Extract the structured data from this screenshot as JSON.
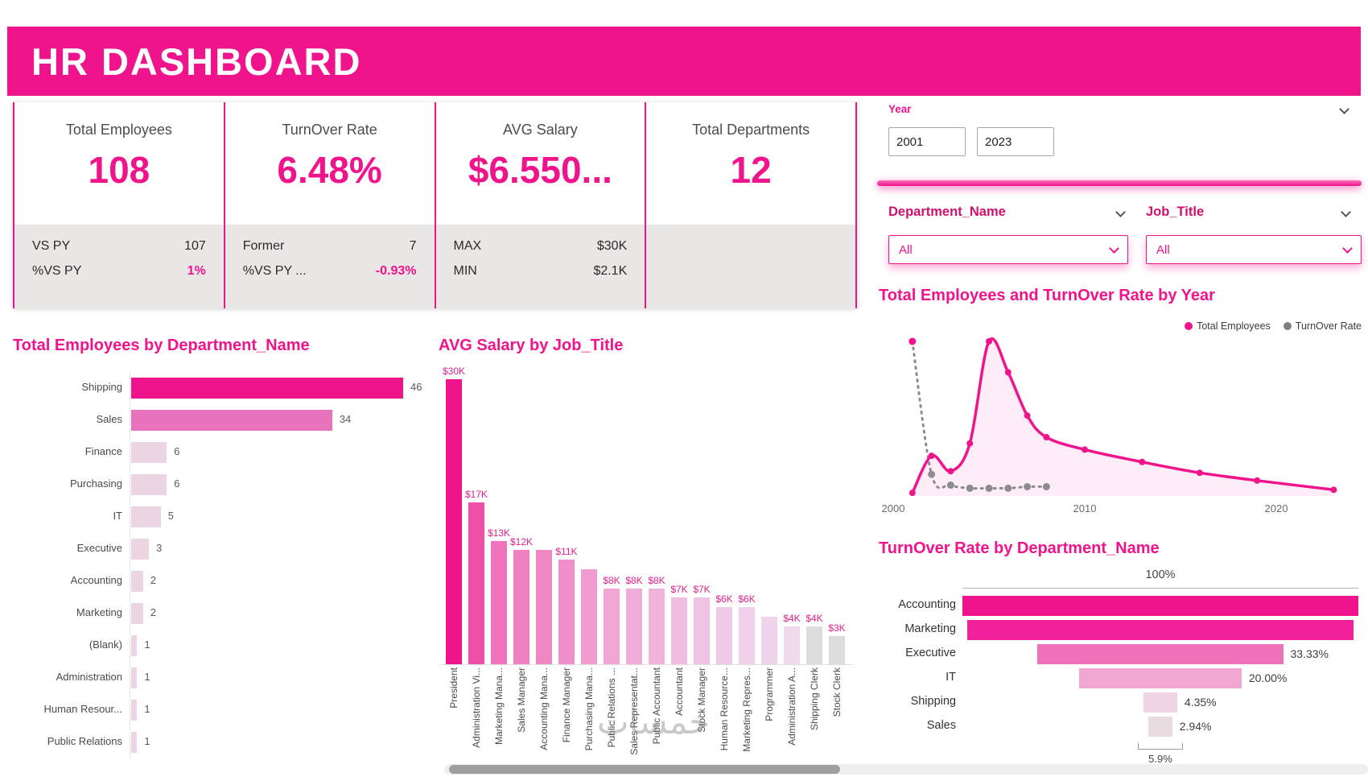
{
  "header": {
    "title": "HR DASHBOARD"
  },
  "kpis": [
    {
      "title": "Total Employees",
      "value": "108",
      "rows": [
        {
          "label": "VS PY",
          "value": "107"
        },
        {
          "label": "%VS PY",
          "value": "1%",
          "highlight": true
        }
      ]
    },
    {
      "title": "TurnOver Rate",
      "value": "6.48%",
      "rows": [
        {
          "label": "Former",
          "value": "7"
        },
        {
          "label": "%VS PY ...",
          "value": "-0.93%",
          "highlight": true
        }
      ]
    },
    {
      "title": "AVG Salary",
      "value": "$6.550...",
      "rows": [
        {
          "label": "MAX",
          "value": "$30K"
        },
        {
          "label": "MIN",
          "value": "$2.1K"
        }
      ]
    },
    {
      "title": "Total Departments",
      "value": "12",
      "rows": []
    }
  ],
  "slicers": {
    "year": {
      "label": "Year",
      "from": "2001",
      "to": "2023"
    },
    "department": {
      "label": "Department_Name",
      "value": "All"
    },
    "job_title": {
      "label": "Job_Title",
      "value": "All"
    }
  },
  "colors": {
    "primary": "#F0148C",
    "medium_pink": "#E972BC",
    "pale_pink": "#EBD5E3",
    "gray_series": "#8C8C8C",
    "card_footer": "#E9E6E6"
  },
  "watermark": "خمسات",
  "chart_data": {
    "employees_by_department": {
      "type": "bar",
      "orientation": "horizontal",
      "title": "Total Employees by Department_Name",
      "categories": [
        "Shipping",
        "Sales",
        "Finance",
        "Purchasing",
        "IT",
        "Executive",
        "Accounting",
        "Marketing",
        "(Blank)",
        "Administration",
        "Human Resour...",
        "Public Relations"
      ],
      "values": [
        46,
        34,
        6,
        6,
        5,
        3,
        2,
        2,
        1,
        1,
        1,
        1
      ],
      "colors": [
        "#F0148C",
        "#E972BC",
        "#EBD5E3",
        "#EBD5E3",
        "#EBD5E3",
        "#EBD5E3",
        "#EBD5E3",
        "#EBD5E3",
        "#EBD5E3",
        "#EBD5E3",
        "#EBD5E3",
        "#EBD5E3"
      ],
      "xlim": [
        0,
        50
      ]
    },
    "salary_by_job": {
      "type": "bar",
      "orientation": "vertical",
      "title": "AVG Salary by Job_Title",
      "categories": [
        "President",
        "Administration Vi...",
        "Marketing Mana...",
        "Sales Manager",
        "Accounting Mana...",
        "Finance Manager",
        "Purchasing Mana...",
        "Public Relations ...",
        "Sales Representat...",
        "Public Accountant",
        "Accountant",
        "Stock Manager",
        "Human Resource...",
        "Marketing Repres...",
        "Programmer",
        "Administration A...",
        "Shipping Clerk",
        "Stock Clerk"
      ],
      "values_k": [
        30,
        17,
        13,
        12,
        12,
        11,
        10,
        8,
        8,
        8,
        7,
        7,
        6,
        6,
        5,
        4,
        4,
        3
      ],
      "labels": [
        "$30K",
        "$17K",
        "$13K",
        "$12K",
        "",
        "$11K",
        "",
        "$8K",
        "$8K",
        "$8K",
        "$7K",
        "$7K",
        "$6K",
        "$6K",
        "",
        "$4K",
        "$4K",
        "$3K"
      ],
      "colors": [
        "#F0148C",
        "#EE4FA7",
        "#EF72BA",
        "#EF81C2",
        "#EF87C5",
        "#EF90CA",
        "#F09CD0",
        "#F0A7D6",
        "#F0ADD9",
        "#F0B3DC",
        "#F0BCE0",
        "#F0C2E3",
        "#F0C9E6",
        "#F0CFE9",
        "#F0D4EB",
        "#EFD8EC",
        "#DCDCDC",
        "#DCDCDC"
      ],
      "ylim": [
        0,
        32
      ]
    },
    "employees_turnover_by_year": {
      "type": "line",
      "title": "Total Employees and TurnOver Rate by Year",
      "x_ticks": [
        "2000",
        "2010",
        "2020"
      ],
      "x_range": [
        2000,
        2024
      ],
      "y_range": [
        0,
        105
      ],
      "series": [
        {
          "name": "Total Employees",
          "color": "#F0148C",
          "style": "solid",
          "points": [
            [
              2001,
              2
            ],
            [
              2002,
              26
            ],
            [
              2003,
              16
            ],
            [
              2004,
              34
            ],
            [
              2005,
              100
            ],
            [
              2006,
              80
            ],
            [
              2007,
              52
            ],
            [
              2008,
              38
            ],
            [
              2010,
              30
            ],
            [
              2013,
              22
            ],
            [
              2016,
              15
            ],
            [
              2019,
              10
            ],
            [
              2023,
              4
            ]
          ]
        },
        {
          "name": "TurnOver Rate",
          "color": "#8C8C8C",
          "style": "dotted",
          "first_marker_color": "#F0148C",
          "points": [
            [
              2001,
              100
            ],
            [
              2002,
              14
            ],
            [
              2003,
              7
            ],
            [
              2004,
              5
            ],
            [
              2005,
              5
            ],
            [
              2006,
              5
            ],
            [
              2007,
              6
            ],
            [
              2008,
              6
            ]
          ]
        }
      ],
      "legend_position": "top-right"
    },
    "turnover_by_department": {
      "type": "funnel",
      "title": "TurnOver Rate by Department_Name",
      "categories": [
        "Accounting",
        "Marketing",
        "Executive",
        "IT",
        "Shipping",
        "Sales"
      ],
      "values_pct": [
        100,
        100,
        33.33,
        20.0,
        4.35,
        2.94
      ],
      "rate_labels": [
        "",
        "",
        "33.33%",
        "20.00%",
        "4.35%",
        "2.94%"
      ],
      "display_widths_pct": [
        100,
        97.5,
        62,
        41,
        8.5,
        6
      ],
      "colors": [
        "#F0148C",
        "#F0219A",
        "#EE71B9",
        "#F2A6D2",
        "#EFD5E5",
        "#E8DCE1"
      ],
      "top_label": "100%",
      "bottom_label": "5.9%"
    }
  }
}
